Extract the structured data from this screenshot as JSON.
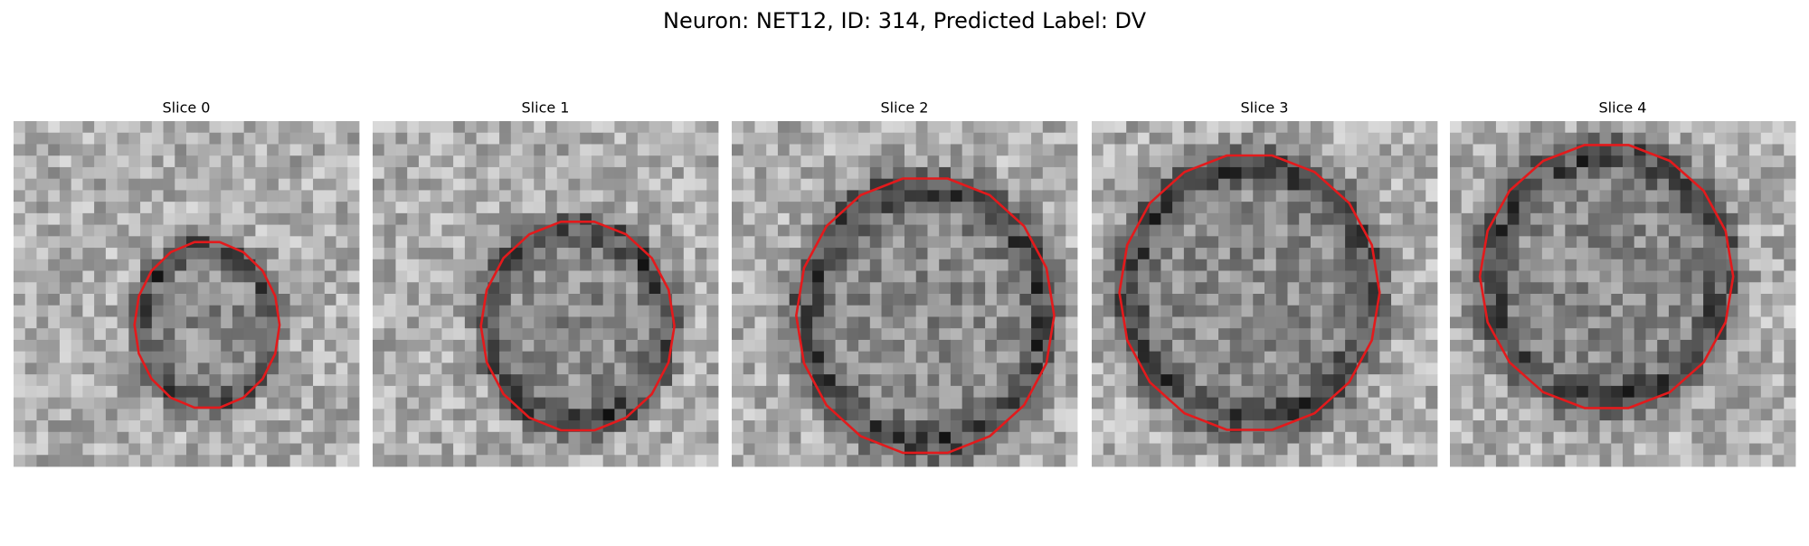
{
  "title": "Neuron: NET12, ID: 314, Predicted Label: DV",
  "panels": [
    {
      "title": "Slice 0"
    },
    {
      "title": "Slice 1"
    },
    {
      "title": "Slice 2"
    },
    {
      "title": "Slice 3"
    },
    {
      "title": "Slice 4"
    }
  ]
}
